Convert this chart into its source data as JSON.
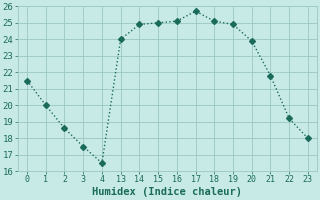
{
  "x_indices": [
    0,
    1,
    2,
    3,
    4,
    5,
    6,
    7,
    8,
    9,
    10,
    11,
    12,
    13,
    14,
    15
  ],
  "x_labels": [
    "0",
    "1",
    "2",
    "3",
    "4",
    "13",
    "14",
    "15",
    "16",
    "17",
    "18",
    "19",
    "20",
    "21",
    "22",
    "23"
  ],
  "y": [
    21.5,
    20.0,
    18.6,
    17.5,
    16.5,
    24.0,
    24.9,
    25.0,
    25.1,
    25.7,
    25.1,
    24.9,
    23.9,
    21.8,
    19.2,
    18.0
  ],
  "line_color": "#1a6b5a",
  "bg_color": "#c8eae6",
  "grid_color": "#a0ccc8",
  "xlabel": "Humidex (Indice chaleur)",
  "ylim": [
    16,
    26
  ],
  "yticks": [
    16,
    17,
    18,
    19,
    20,
    21,
    22,
    23,
    24,
    25,
    26
  ],
  "marker_size": 3,
  "line_width": 1.0
}
